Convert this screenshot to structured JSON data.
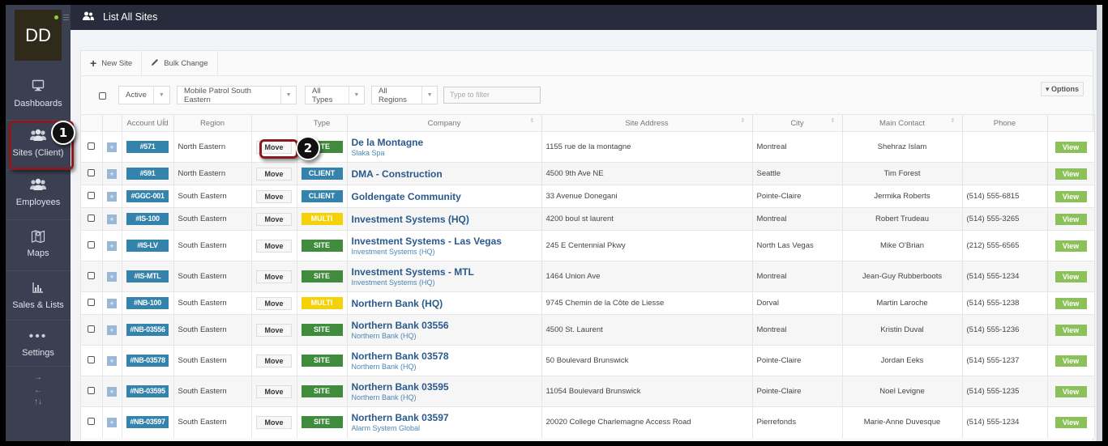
{
  "sidebar": {
    "avatar_initials": "DD",
    "items": [
      {
        "label": "Dashboards",
        "icon": "monitor-icon"
      },
      {
        "label": "Sites (Client)",
        "icon": "users-group-icon"
      },
      {
        "label": "Employees",
        "icon": "users-group-icon"
      },
      {
        "label": "Maps",
        "icon": "map-icon"
      },
      {
        "label": "Sales & Lists",
        "icon": "bar-chart-icon"
      },
      {
        "label": "Settings",
        "icon": "dots-icon"
      }
    ],
    "arrows": {
      "right": "→",
      "left": "←",
      "updown": "↑↓"
    }
  },
  "header": {
    "title": "List All Sites",
    "icon": "users-icon"
  },
  "toolbar": {
    "new_site": "New Site",
    "bulk_change": "Bulk Change"
  },
  "filters": {
    "status": "Active",
    "group": "Mobile Patrol South Eastern",
    "types": "All Types",
    "regions": "All Regions",
    "search_placeholder": "Type to filter",
    "options": "Options"
  },
  "table": {
    "columns": [
      "",
      "",
      "Account Uid",
      "Region",
      "",
      "Type",
      "Company",
      "Site Address",
      "City",
      "Main Contact",
      "Phone",
      ""
    ],
    "rows": [
      {
        "uid": "#571",
        "region": "North Eastern",
        "move": "Move",
        "type": "SITE",
        "type_class": "site",
        "company": "De la Montagne",
        "parent": "Slaka Spa",
        "address": "1155 rue de la montagne",
        "city": "Montreal",
        "contact": "Shehraz Islam",
        "phone": "",
        "view": "View"
      },
      {
        "uid": "#591",
        "region": "North Eastern",
        "move": "Move",
        "type": "CLIENT",
        "type_class": "client",
        "company": "DMA - Construction",
        "parent": "",
        "address": "4500 9th Ave NE",
        "city": "Seattle",
        "contact": "Tim Forest",
        "phone": "",
        "view": "View"
      },
      {
        "uid": "#GGC-001",
        "region": "South Eastern",
        "move": "Move",
        "type": "CLIENT",
        "type_class": "client",
        "company": "Goldengate Community",
        "parent": "",
        "address": "33 Avenue Donegani",
        "city": "Pointe-Claire",
        "contact": "Jermika Roberts",
        "phone": "(514) 555-6815",
        "view": "View"
      },
      {
        "uid": "#IS-100",
        "region": "South Eastern",
        "move": "Move",
        "type": "MULTI",
        "type_class": "multi",
        "company": "Investment Systems (HQ)",
        "parent": "",
        "address": "4200 boul st laurent",
        "city": "Montreal",
        "contact": "Robert Trudeau",
        "phone": "(514) 555-3265",
        "view": "View"
      },
      {
        "uid": "#IS-LV",
        "region": "South Eastern",
        "move": "Move",
        "type": "SITE",
        "type_class": "site",
        "company": "Investment Systems - Las Vegas",
        "parent": "Investment Systems (HQ)",
        "address": "245 E Centennial Pkwy",
        "city": "North Las Vegas",
        "contact": "Mike O'Brian",
        "phone": "(212) 555-6565",
        "view": "View"
      },
      {
        "uid": "#IS-MTL",
        "region": "South Eastern",
        "move": "Move",
        "type": "SITE",
        "type_class": "site",
        "company": "Investment Systems - MTL",
        "parent": "Investment Systems (HQ)",
        "address": "1464 Union Ave",
        "city": "Montreal",
        "contact": "Jean-Guy Rubberboots",
        "phone": "(514) 555-1234",
        "view": "View"
      },
      {
        "uid": "#NB-100",
        "region": "South Eastern",
        "move": "Move",
        "type": "MULTI",
        "type_class": "multi",
        "company": "Northern Bank (HQ)",
        "parent": "",
        "address": "9745 Chemin de la Côte de Liesse",
        "city": "Dorval",
        "contact": "Martin Laroche",
        "phone": "(514) 555-1238",
        "view": "View"
      },
      {
        "uid": "#NB-03556",
        "region": "South Eastern",
        "move": "Move",
        "type": "SITE",
        "type_class": "site",
        "company": "Northern Bank 03556",
        "parent": "Northern Bank (HQ)",
        "address": "4500 St. Laurent",
        "city": "Montreal",
        "contact": "Kristin Duval",
        "phone": "(514) 555-1236",
        "view": "View"
      },
      {
        "uid": "#NB-03578",
        "region": "South Eastern",
        "move": "Move",
        "type": "SITE",
        "type_class": "site",
        "company": "Northern Bank 03578",
        "parent": "Northern Bank (HQ)",
        "address": "50 Boulevard Brunswick",
        "city": "Pointe-Claire",
        "contact": "Jordan Eeks",
        "phone": "(514) 555-1237",
        "view": "View"
      },
      {
        "uid": "#NB-03595",
        "region": "South Eastern",
        "move": "Move",
        "type": "SITE",
        "type_class": "site",
        "company": "Northern Bank 03595",
        "parent": "Northern Bank (HQ)",
        "address": "11054 Boulevard Brunswick",
        "city": "Pointe-Claire",
        "contact": "Noel Levigne",
        "phone": "(514) 555-1235",
        "view": "View"
      },
      {
        "uid": "#NB-03597",
        "region": "South Eastern",
        "move": "Move",
        "type": "SITE",
        "type_class": "site",
        "company": "Northern Bank 03597",
        "parent": "Alarm System Global",
        "address": "20020 College Charlemagne Access Road",
        "city": "Pierrefonds",
        "contact": "Marie-Anne Duvesque",
        "phone": "(514) 555-1234",
        "view": "View"
      }
    ]
  },
  "callouts": [
    {
      "number": "1",
      "target": "Sites (Client)"
    },
    {
      "number": "2",
      "target": "Move"
    }
  ],
  "colors": {
    "sidebar_bg": "#3a3f51",
    "topbar_bg": "#272b3b",
    "account_badge": "#3483ad",
    "site_badge": "#3e8c3c",
    "client_badge": "#3483ad",
    "multi_badge": "#f5d10a",
    "view_button": "#8cc15a",
    "callout_border": "#8b1a1e"
  }
}
